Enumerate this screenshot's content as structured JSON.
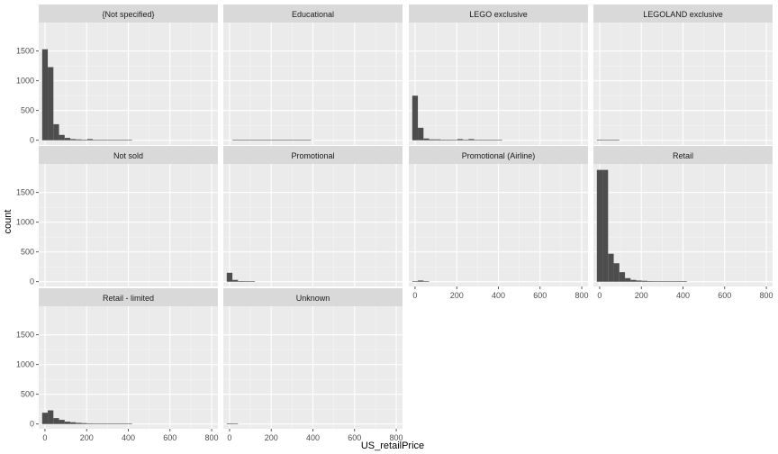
{
  "chart_data": {
    "type": "bar",
    "chart_kind": "faceted-histogram",
    "xlabel": "US_retailPrice",
    "ylabel": "count",
    "xlim": [
      -30,
      830
    ],
    "ylim": [
      -80,
      1980
    ],
    "x_ticks": [
      0,
      200,
      400,
      600,
      800
    ],
    "y_ticks": [
      0,
      500,
      1000,
      1500
    ],
    "bin_width": 27,
    "bin_centers": [
      0,
      27,
      54,
      81,
      108,
      135,
      162,
      189,
      216,
      243,
      270,
      297,
      324,
      351,
      378,
      405
    ],
    "grid": true,
    "legend": "none",
    "colors": {
      "bar": "#4d4d4d",
      "panel_bg": "#ebebeb",
      "strip_bg": "#d9d9d9",
      "grid": "#ffffff"
    },
    "facets": [
      {
        "name": "{Not specified}",
        "values": [
          1530,
          1230,
          270,
          90,
          40,
          20,
          15,
          10,
          20,
          8,
          5,
          4,
          3,
          2,
          1,
          1
        ]
      },
      {
        "name": "Educational",
        "values": [
          0,
          4,
          3,
          4,
          2,
          2,
          3,
          2,
          2,
          3,
          5,
          2,
          2,
          1,
          1,
          0
        ]
      },
      {
        "name": "LEGO exclusive",
        "values": [
          750,
          210,
          30,
          15,
          15,
          10,
          10,
          8,
          20,
          10,
          20,
          6,
          5,
          8,
          4,
          3
        ]
      },
      {
        "name": "LEGOLAND exclusive",
        "values": [
          10,
          5,
          3,
          2,
          0,
          0,
          0,
          0,
          0,
          0,
          0,
          0,
          0,
          0,
          0,
          0
        ]
      },
      {
        "name": "Not sold",
        "values": [
          0,
          0,
          0,
          0,
          0,
          0,
          0,
          0,
          0,
          0,
          0,
          0,
          0,
          0,
          0,
          0
        ]
      },
      {
        "name": "Promotional",
        "values": [
          150,
          30,
          10,
          5,
          2,
          0,
          0,
          0,
          0,
          0,
          0,
          0,
          0,
          0,
          0,
          0
        ]
      },
      {
        "name": "Promotional (Airline)",
        "values": [
          5,
          20,
          4,
          0,
          0,
          0,
          0,
          0,
          0,
          0,
          0,
          0,
          0,
          0,
          0,
          0
        ]
      },
      {
        "name": "Retail",
        "values": [
          1880,
          1880,
          470,
          310,
          160,
          60,
          30,
          20,
          15,
          10,
          8,
          5,
          5,
          3,
          2,
          2
        ]
      },
      {
        "name": "Retail - limited",
        "values": [
          190,
          230,
          100,
          70,
          40,
          30,
          20,
          15,
          10,
          8,
          6,
          4,
          3,
          2,
          1,
          1
        ]
      },
      {
        "name": "Unknown",
        "values": [
          10,
          3,
          0,
          0,
          0,
          0,
          0,
          0,
          0,
          0,
          0,
          0,
          0,
          0,
          0,
          0
        ]
      }
    ]
  }
}
